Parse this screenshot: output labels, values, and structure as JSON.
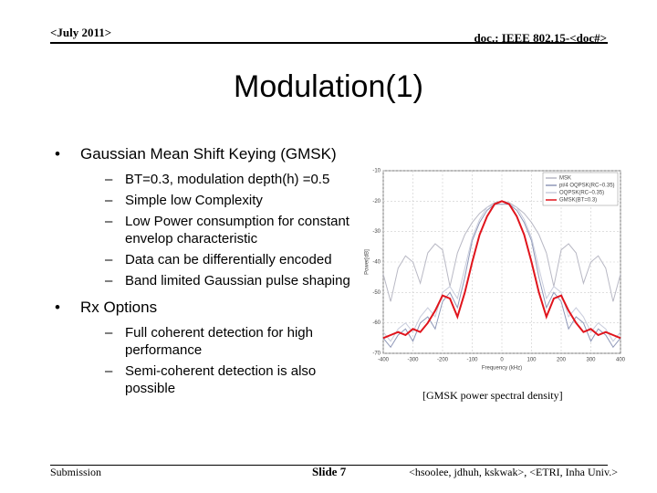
{
  "header": {
    "left": "<July 2011>",
    "right": "doc.: IEEE 802.15-<doc#>"
  },
  "title": "Modulation(1)",
  "bullets": [
    {
      "text": "Gaussian Mean Shift Keying (GMSK)",
      "items": [
        "BT=0.3, modulation depth(h) =0.5",
        "Simple low Complexity",
        "Low Power consumption for constant envelop characteristic",
        "Data can be differentially encoded",
        "Band limited Gaussian pulse shaping"
      ]
    },
    {
      "text": "Rx Options",
      "items": [
        "Full coherent detection for high performance",
        "Semi-coherent detection is also possible"
      ]
    }
  ],
  "figure": {
    "type": "line",
    "x_label": "Frequency (kHz)",
    "y_label": "Power[dB]",
    "x": [
      -400,
      -375,
      -350,
      -325,
      -300,
      -275,
      -250,
      -225,
      -200,
      -175,
      -150,
      -125,
      -100,
      -75,
      -50,
      -25,
      0,
      25,
      50,
      75,
      100,
      125,
      150,
      175,
      200,
      225,
      250,
      275,
      300,
      325,
      350,
      375,
      400
    ],
    "series": [
      {
        "name": "MSK",
        "color": "#b8b8c4",
        "values": [
          -44,
          -53,
          -42,
          -38,
          -40,
          -47,
          -37,
          -34,
          -36,
          -48,
          -37,
          -31,
          -27,
          -24,
          -22,
          -20.5,
          -20,
          -20.5,
          -22,
          -24,
          -27,
          -31,
          -37,
          -48,
          -36,
          -34,
          -37,
          -47,
          -40,
          -38,
          -42,
          -53,
          -44
        ]
      },
      {
        "name": "pi/4 OQPSK(RC~0.35)",
        "color": "#8f98b8",
        "values": [
          -65,
          -68,
          -64,
          -62,
          -66,
          -60,
          -58,
          -62,
          -53,
          -50,
          -55,
          -45,
          -33,
          -27,
          -23,
          -21,
          -21,
          -21,
          -23,
          -27,
          -33,
          -45,
          -55,
          -50,
          -53,
          -62,
          -58,
          -60,
          -66,
          -62,
          -64,
          -68,
          -65
        ]
      },
      {
        "name": "OQPSK(RC~0.35)",
        "color": "#c8ccdc",
        "values": [
          -63,
          -66,
          -62,
          -60,
          -63,
          -58,
          -55,
          -58,
          -50,
          -48,
          -52,
          -42,
          -32,
          -26,
          -22,
          -21,
          -20,
          -21,
          -22,
          -26,
          -32,
          -42,
          -52,
          -48,
          -50,
          -58,
          -55,
          -58,
          -63,
          -60,
          -62,
          -66,
          -63
        ]
      },
      {
        "name": "GMSK(BT=0.3)",
        "color": "#e0141c",
        "values": [
          -65,
          -64,
          -63,
          -64,
          -62,
          -63,
          -60,
          -56,
          -51,
          -52,
          -58,
          -50,
          -40,
          -31,
          -25,
          -21,
          -20,
          -21,
          -25,
          -31,
          -40,
          -50,
          -58,
          -52,
          -51,
          -56,
          -60,
          -63,
          -62,
          -64,
          -63,
          -64,
          -65
        ]
      }
    ],
    "xlim": [
      -400,
      400
    ],
    "xticks": [
      -400,
      -300,
      -200,
      -100,
      0,
      100,
      200,
      300,
      400
    ],
    "ylim": [
      -70,
      -10
    ],
    "yticks": [
      -10,
      -20,
      -30,
      -40,
      -50,
      -60,
      -70
    ],
    "grid": true,
    "legend": "top-right"
  },
  "caption": "[GMSK power spectral density]",
  "footer": {
    "left": "Submission",
    "center": "Slide 7",
    "right": "<hsoolee, jdhuh, kskwak>, <ETRI, Inha Univ.>"
  }
}
